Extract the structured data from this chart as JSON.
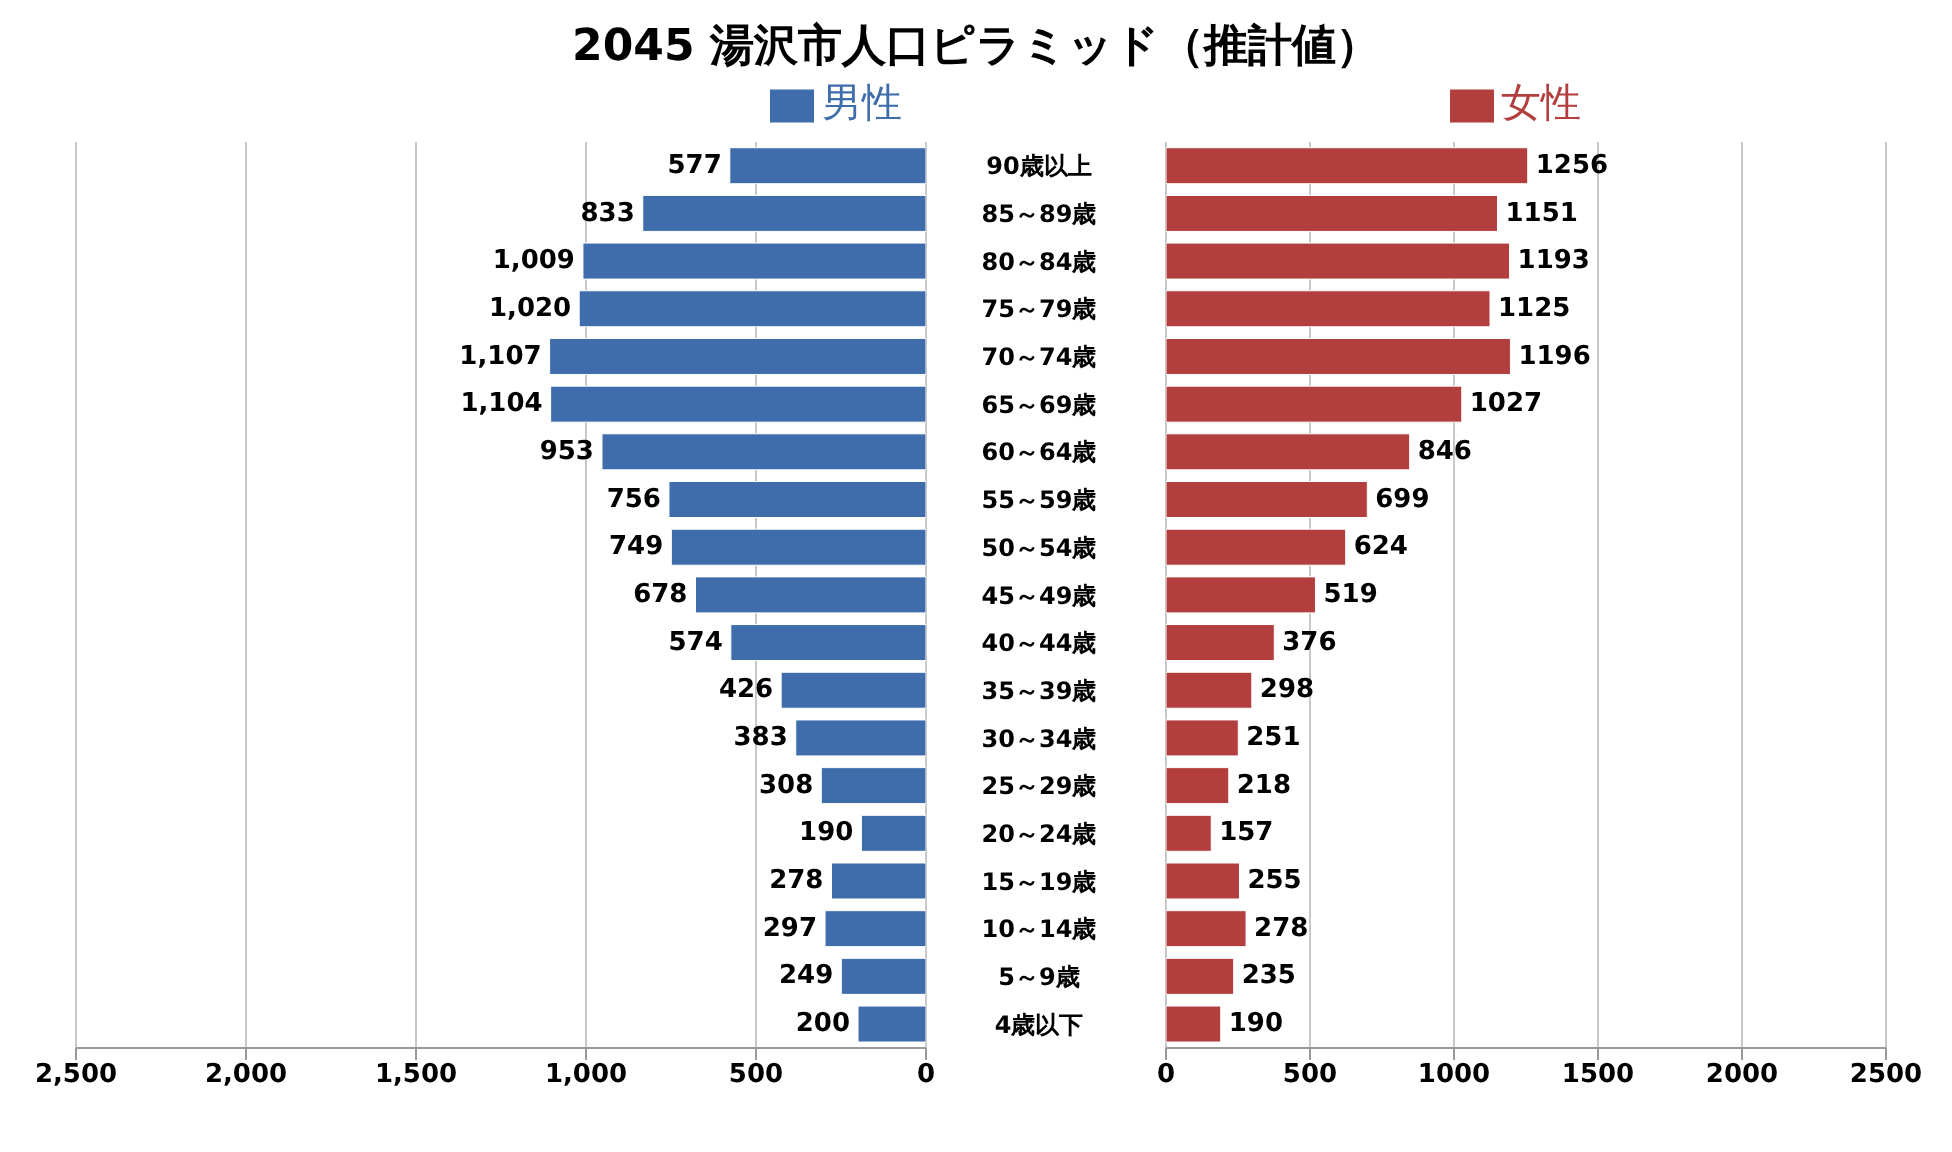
{
  "chart_data": [
    {
      "type": "bar",
      "orientation": "horizontal",
      "title": "2045 湯沢市人口ピラミッド（推計値）",
      "categories": [
        "90歳以上",
        "85～89歳",
        "80～84歳",
        "75～79歳",
        "70～74歳",
        "65～69歳",
        "60～64歳",
        "55～59歳",
        "50～54歳",
        "45～49歳",
        "40～44歳",
        "35～39歳",
        "30～34歳",
        "25～29歳",
        "20～24歳",
        "15～19歳",
        "10～14歳",
        "5～9歳",
        "4歳以下"
      ],
      "series": [
        {
          "name": "男性",
          "color": "#3f6dab",
          "values": [
            577,
            833,
            1009,
            1020,
            1107,
            1104,
            953,
            756,
            749,
            678,
            574,
            426,
            383,
            308,
            190,
            278,
            297,
            249,
            200
          ],
          "value_labels": [
            "577",
            "833",
            "1,009",
            "1,020",
            "1,107",
            "1,104",
            "953",
            "756",
            "749",
            "678",
            "574",
            "426",
            "383",
            "308",
            "190",
            "278",
            "297",
            "249",
            "200"
          ]
        }
      ],
      "xlim": [
        2500,
        0
      ],
      "xticks": [
        {
          "value": 2500,
          "label": "2,500"
        },
        {
          "value": 2000,
          "label": "2,000"
        },
        {
          "value": 1500,
          "label": "1,500"
        },
        {
          "value": 1000,
          "label": "1,000"
        },
        500,
        0
      ],
      "grid": "x",
      "legend": "top"
    },
    {
      "type": "bar",
      "orientation": "horizontal",
      "series": [
        {
          "name": "女性",
          "color": "#b33e3e",
          "values": [
            1256,
            1151,
            1193,
            1125,
            1196,
            1027,
            846,
            699,
            624,
            519,
            376,
            298,
            251,
            218,
            157,
            255,
            278,
            235,
            190
          ]
        }
      ],
      "xlim": [
        0,
        2500
      ],
      "xticks": [
        0,
        500,
        1000,
        1500,
        2000,
        2500
      ],
      "grid": "x",
      "legend": "top",
      "data_labels": true,
      "tick_labels": "x"
    }
  ]
}
